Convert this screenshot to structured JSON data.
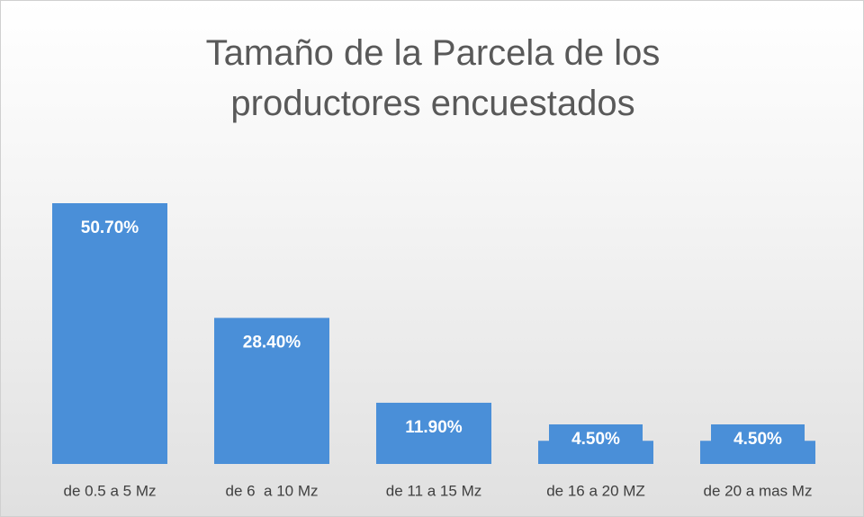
{
  "chart_data": {
    "type": "bar",
    "title": "Tamaño de la Parcela de los productores encuestados",
    "categories": [
      "de 0.5 a 5 Mz",
      "de 6  a 10 Mz",
      "de 11 a 15 Mz",
      "de 16 a 20 MZ",
      "de 20 a mas Mz"
    ],
    "values": [
      50.7,
      28.4,
      11.9,
      4.5,
      4.5
    ],
    "value_labels": [
      "50.70%",
      "28.40%",
      "11.90%",
      "4.50%",
      "4.50%"
    ],
    "color": "#4a8fd8"
  }
}
